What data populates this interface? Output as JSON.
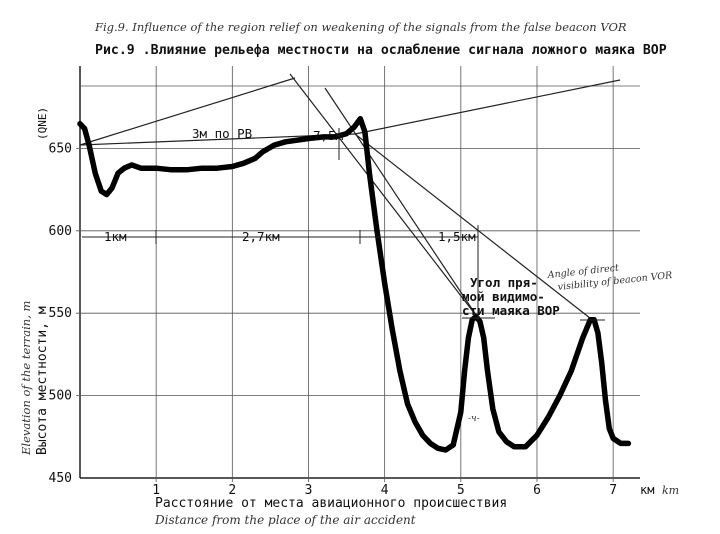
{
  "chart_data": {
    "type": "line",
    "title_en": "Fig.9. Influence of the region relief on weakening of the signals from the false beacon VOR",
    "title_ru": "Рис.9 .Влияние рельефа местности на ослабление сигнала ложного маяка ВОР",
    "xlabel_ru": "Расстояние от места авиационного происшествия",
    "xlabel_en": "Distance from the place of the air accident",
    "ylabel_ru": "Высота местности, м",
    "ylabel_en": "Elevation of the terrain, m",
    "y_unit_tag": "(QNE)",
    "x_unit": "км",
    "x_unit_hw": "km",
    "xlim": [
      0,
      7.3
    ],
    "ylim": [
      450,
      700
    ],
    "x_ticks": [
      "1",
      "2",
      "3",
      "4",
      "5",
      "6",
      "7"
    ],
    "y_ticks": [
      "450",
      "500",
      "550",
      "600",
      "650"
    ],
    "series": [
      {
        "x": [
          0,
          0.06,
          0.12,
          0.2,
          0.28,
          0.35,
          0.42,
          0.5,
          0.58,
          0.68,
          0.8,
          1.0,
          1.2,
          1.4,
          1.6,
          1.8,
          2.0,
          2.15,
          2.3,
          2.4,
          2.55,
          2.7,
          2.85,
          3.0,
          3.2,
          3.35,
          3.5,
          3.6,
          3.68,
          3.74,
          3.8,
          3.9,
          4.0,
          4.1,
          4.2,
          4.3,
          4.4,
          4.5,
          4.6,
          4.7,
          4.8,
          4.9,
          5.0,
          5.05,
          5.1,
          5.15,
          5.2,
          5.25,
          5.3,
          5.35,
          5.42,
          5.5,
          5.6,
          5.7,
          5.85,
          6.0,
          6.15,
          6.3,
          6.45,
          6.6,
          6.7,
          6.75,
          6.8,
          6.85,
          6.9,
          6.95,
          7.0,
          7.1,
          7.2
        ],
        "y": [
          665,
          662,
          652,
          635,
          624,
          622,
          626,
          635,
          638,
          640,
          638,
          638,
          637,
          637,
          638,
          638,
          639,
          641,
          644,
          648,
          652,
          654,
          655,
          656,
          657,
          657,
          659,
          663,
          668,
          660,
          635,
          600,
          568,
          540,
          515,
          495,
          484,
          476,
          471,
          468,
          467,
          470,
          490,
          515,
          535,
          546,
          548,
          545,
          535,
          515,
          492,
          478,
          472,
          469,
          469,
          476,
          487,
          500,
          515,
          535,
          546,
          546,
          538,
          520,
          497,
          480,
          474,
          471,
          471
        ]
      }
    ],
    "annotations": {
      "rb_3m": "3м по РВ",
      "height_7_5m": "7,5м",
      "dist_1km": "1км",
      "dist_2_7km": "2,7км",
      "dist_1_5km": "1,5км",
      "visibility_ru": [
        "Угол пря-",
        "мой видимо-",
        "сти маяка ВОР"
      ],
      "visibility_en": [
        "Angle of direct",
        "visibility of beacon VOR"
      ],
      "wave_mark": "-ч-"
    },
    "grid": true
  }
}
